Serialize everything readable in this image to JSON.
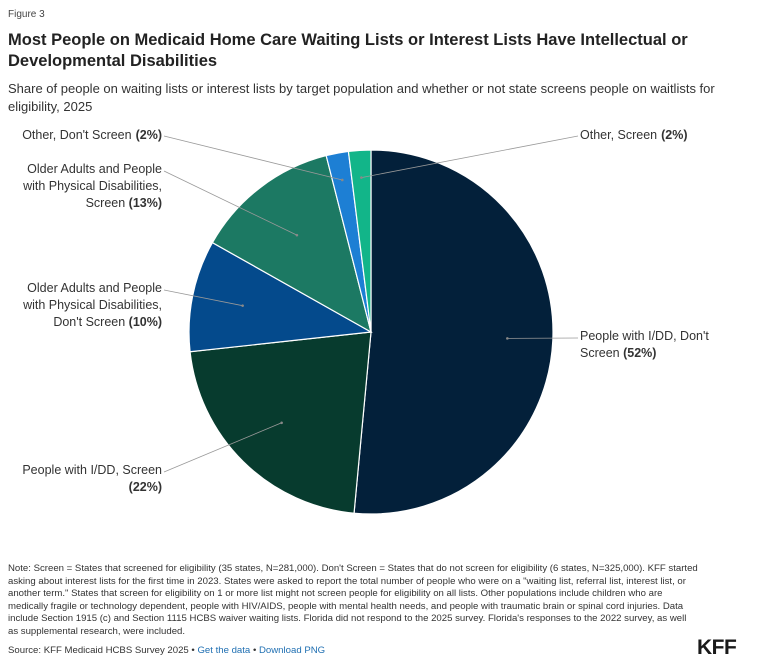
{
  "figure_label": "Figure 3",
  "title": "Most People on Medicaid Home Care Waiting Lists or Interest Lists Have Intellectual or Developmental Disabilities",
  "subtitle": "Share of people on waiting lists or interest lists by target population and whether or not state screens people on waitlists for eligibility, 2025",
  "chart_data": {
    "type": "pie",
    "title": "Most People on Medicaid Home Care Waiting Lists or Interest Lists Have Intellectual or Developmental Disabilities",
    "start_angle_deg": 0,
    "direction": "clockwise",
    "slices": [
      {
        "label_lines": [
          "People with I/DD, Don't",
          "Screen"
        ],
        "pct_text": "(52%)",
        "value": 52,
        "color": "#03203a"
      },
      {
        "label_lines": [
          "People with I/DD, Screen"
        ],
        "pct_text": "(22%)",
        "value": 22,
        "color": "#073b2e"
      },
      {
        "label_lines": [
          "Older Adults and People",
          "with Physical Disabilities,",
          "Don't Screen"
        ],
        "pct_text": "(10%)",
        "value": 10,
        "color": "#044a8c"
      },
      {
        "label_lines": [
          "Older Adults and People",
          "with Physical Disabilities,",
          "Screen"
        ],
        "pct_text": "(13%)",
        "value": 13,
        "color": "#1c7963"
      },
      {
        "label_lines": [
          "Other, Don't Screen"
        ],
        "pct_text": "(2%)",
        "value": 2,
        "color": "#1d7fd4"
      },
      {
        "label_lines": [
          "Other, Screen"
        ],
        "pct_text": "(2%)",
        "value": 2,
        "color": "#12b589"
      }
    ]
  },
  "note": "Note: Screen = States that screened for eligibility (35 states, N=281,000). Don't Screen = States that do not screen for eligibility (6 states, N=325,000). KFF started asking about interest lists for the first time in 2023. States were asked to report the total number of people who were on a \"waiting list, referral list, interest list, or another term.\" States that screen for eligibility on 1 or more list might not screen people for eligibility on all lists. Other populations include children who are medically fragile or technology dependent, people with HIV/AIDS, people with mental health needs, and people with traumatic brain or spinal cord injuries. Data include Section 1915 (c) and Section 1115 HCBS waiver waiting lists. Florida did not respond to the 2025 survey. Florida's responses to the 2022 survey, as well as supplemental research, were included.",
  "source": {
    "text": "Source: KFF Medicaid HCBS Survey 2025",
    "sep": " • ",
    "get_data": "Get the data",
    "download": "Download PNG"
  },
  "logo": "KFF"
}
